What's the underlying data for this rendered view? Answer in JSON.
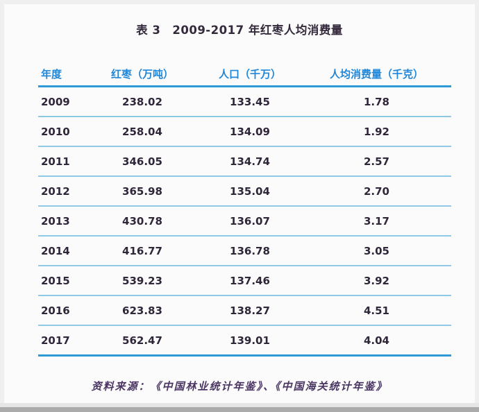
{
  "title": "表 3　2009-2017 年红枣人均消费量",
  "table": {
    "headers": [
      "年度",
      "红枣（万吨）",
      "人口（千万）",
      "人均消费量（千克）"
    ],
    "rows": [
      [
        "2009",
        "238.02",
        "133.45",
        "1.78"
      ],
      [
        "2010",
        "258.04",
        "134.09",
        "1.92"
      ],
      [
        "2011",
        "346.05",
        "134.74",
        "2.57"
      ],
      [
        "2012",
        "365.98",
        "135.04",
        "2.70"
      ],
      [
        "2013",
        "430.78",
        "136.07",
        "3.17"
      ],
      [
        "2014",
        "416.77",
        "136.78",
        "3.05"
      ],
      [
        "2015",
        "539.23",
        "137.46",
        "3.92"
      ],
      [
        "2016",
        "623.83",
        "138.27",
        "4.51"
      ],
      [
        "2017",
        "562.47",
        "139.01",
        "4.04"
      ]
    ]
  },
  "source_note": "资料来源：《中国林业统计年鉴》、《中国海关统计年鉴》",
  "colors": {
    "header_text": "#1f87d9",
    "thick_rule": "#2d9ad6",
    "thin_rule": "#8ec9e8",
    "body_text": "#30263a",
    "title_text": "#342a3c",
    "source_text": "#4a3563",
    "page_background": "#fbfbfb",
    "bottom_strip": "#ababab"
  },
  "chart_data": {
    "type": "table",
    "title": "表3 2009-2017年红枣人均消费量",
    "columns": [
      "年度",
      "红枣（万吨）",
      "人口（千万）",
      "人均消费量（千克）"
    ],
    "rows": [
      [
        2009,
        238.02,
        133.45,
        1.78
      ],
      [
        2010,
        258.04,
        134.09,
        1.92
      ],
      [
        2011,
        346.05,
        134.74,
        2.57
      ],
      [
        2012,
        365.98,
        135.04,
        2.7
      ],
      [
        2013,
        430.78,
        136.07,
        3.17
      ],
      [
        2014,
        416.77,
        136.78,
        3.05
      ],
      [
        2015,
        539.23,
        137.46,
        3.92
      ],
      [
        2016,
        623.83,
        138.27,
        4.51
      ],
      [
        2017,
        562.47,
        139.01,
        4.04
      ]
    ],
    "source": "资料来源：《中国林业统计年鉴》、《中国海关统计年鉴》"
  }
}
